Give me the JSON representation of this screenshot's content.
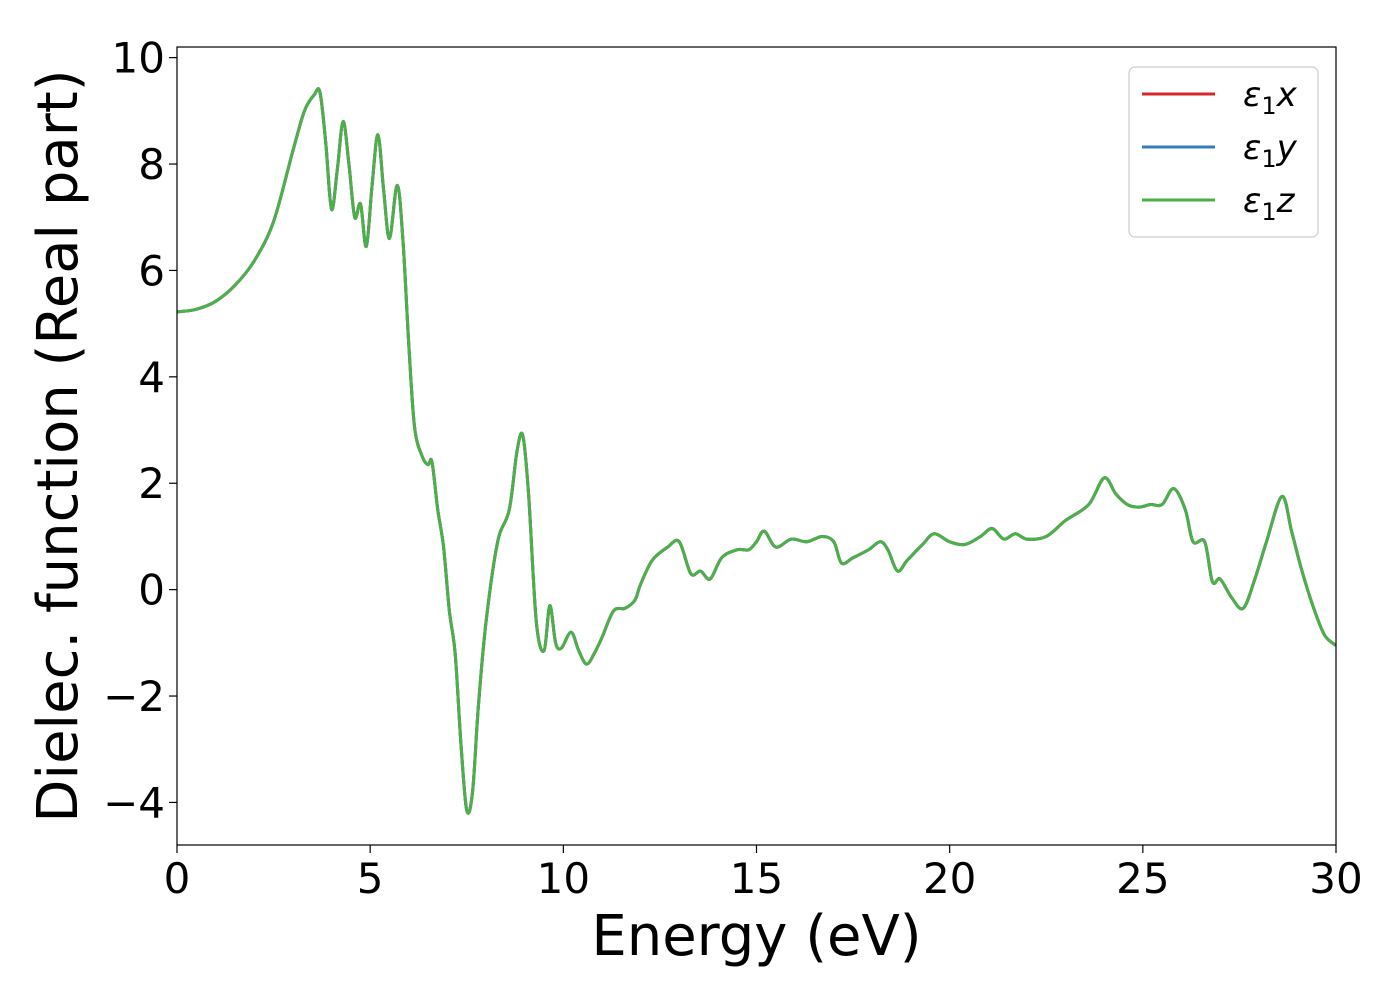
{
  "chart_data": {
    "type": "line",
    "title": "",
    "xlabel": "Energy (eV)",
    "ylabel": "Dielec. function (Real part)",
    "xlim": [
      0,
      30
    ],
    "ylim": [
      -4.8,
      10.2
    ],
    "xticks": [
      0,
      5,
      10,
      15,
      20,
      25,
      30
    ],
    "xtick_labels": [
      "0",
      "5",
      "10",
      "15",
      "20",
      "25",
      "30"
    ],
    "yticks": [
      -4,
      -2,
      0,
      2,
      4,
      6,
      8,
      10
    ],
    "ytick_labels": [
      "−4",
      "−2",
      "0",
      "2",
      "4",
      "6",
      "8",
      "10"
    ],
    "grid": false,
    "legend_position": "top-right",
    "x": [
      0.0,
      0.5,
      1.0,
      1.5,
      2.0,
      2.5,
      3.0,
      3.3,
      3.55,
      3.7,
      3.85,
      4.0,
      4.15,
      4.3,
      4.45,
      4.6,
      4.75,
      4.9,
      5.05,
      5.2,
      5.35,
      5.5,
      5.7,
      5.85,
      6.0,
      6.15,
      6.35,
      6.5,
      6.6,
      6.75,
      6.9,
      7.05,
      7.2,
      7.35,
      7.5,
      7.65,
      7.8,
      8.0,
      8.3,
      8.6,
      8.8,
      8.95,
      9.1,
      9.3,
      9.5,
      9.65,
      9.8,
      9.95,
      10.2,
      10.4,
      10.6,
      10.8,
      11.0,
      11.3,
      11.6,
      11.85,
      12.0,
      12.3,
      12.7,
      13.0,
      13.3,
      13.55,
      13.8,
      14.1,
      14.5,
      14.8,
      15.0,
      15.2,
      15.5,
      15.9,
      16.3,
      16.7,
      17.0,
      17.2,
      17.5,
      17.9,
      18.2,
      18.4,
      18.65,
      18.9,
      19.3,
      19.6,
      20.0,
      20.4,
      20.8,
      21.1,
      21.4,
      21.7,
      22.0,
      22.5,
      23.0,
      23.6,
      24.0,
      24.3,
      24.6,
      24.9,
      25.2,
      25.5,
      25.8,
      26.1,
      26.3,
      26.6,
      26.8,
      27.0,
      27.3,
      27.6,
      27.9,
      28.2,
      28.6,
      28.85,
      29.1,
      29.4,
      29.7,
      30.0
    ],
    "series": [
      {
        "name": "ε₁x",
        "color": "#d62728",
        "values": [
          5.22,
          5.27,
          5.42,
          5.72,
          6.18,
          6.92,
          8.25,
          9.0,
          9.3,
          9.35,
          8.4,
          7.15,
          7.9,
          8.8,
          8.0,
          7.0,
          7.25,
          6.45,
          7.6,
          8.55,
          7.5,
          6.6,
          7.6,
          6.55,
          4.6,
          3.05,
          2.5,
          2.35,
          2.4,
          1.5,
          0.8,
          -0.4,
          -1.2,
          -2.9,
          -4.15,
          -3.8,
          -2.2,
          -0.6,
          0.9,
          1.5,
          2.6,
          2.9,
          1.8,
          -0.6,
          -1.15,
          -0.3,
          -1.0,
          -1.1,
          -0.8,
          -1.15,
          -1.4,
          -1.2,
          -0.9,
          -0.4,
          -0.35,
          -0.2,
          0.1,
          0.55,
          0.8,
          0.9,
          0.3,
          0.35,
          0.2,
          0.6,
          0.75,
          0.75,
          0.9,
          1.1,
          0.8,
          0.95,
          0.9,
          1.0,
          0.9,
          0.5,
          0.6,
          0.75,
          0.9,
          0.75,
          0.35,
          0.55,
          0.85,
          1.05,
          0.9,
          0.85,
          1.0,
          1.15,
          0.95,
          1.05,
          0.95,
          1.0,
          1.3,
          1.6,
          2.1,
          1.8,
          1.6,
          1.55,
          1.6,
          1.6,
          1.9,
          1.5,
          0.9,
          0.9,
          0.15,
          0.2,
          -0.15,
          -0.35,
          0.2,
          0.9,
          1.75,
          1.1,
          0.4,
          -0.3,
          -0.85,
          -1.05
        ]
      },
      {
        "name": "ε₁y",
        "color": "#377eb8",
        "values": [
          5.22,
          5.27,
          5.42,
          5.72,
          6.18,
          6.92,
          8.25,
          9.0,
          9.3,
          9.35,
          8.4,
          7.15,
          7.9,
          8.8,
          8.0,
          7.0,
          7.25,
          6.45,
          7.6,
          8.55,
          7.5,
          6.6,
          7.6,
          6.55,
          4.6,
          3.05,
          2.5,
          2.35,
          2.4,
          1.5,
          0.8,
          -0.4,
          -1.2,
          -2.9,
          -4.15,
          -3.8,
          -2.2,
          -0.6,
          0.9,
          1.5,
          2.6,
          2.9,
          1.8,
          -0.6,
          -1.15,
          -0.3,
          -1.0,
          -1.1,
          -0.8,
          -1.15,
          -1.4,
          -1.2,
          -0.9,
          -0.4,
          -0.35,
          -0.2,
          0.1,
          0.55,
          0.8,
          0.9,
          0.3,
          0.35,
          0.2,
          0.6,
          0.75,
          0.75,
          0.9,
          1.1,
          0.8,
          0.95,
          0.9,
          1.0,
          0.9,
          0.5,
          0.6,
          0.75,
          0.9,
          0.75,
          0.35,
          0.55,
          0.85,
          1.05,
          0.9,
          0.85,
          1.0,
          1.15,
          0.95,
          1.05,
          0.95,
          1.0,
          1.3,
          1.6,
          2.1,
          1.8,
          1.6,
          1.55,
          1.6,
          1.6,
          1.9,
          1.5,
          0.9,
          0.9,
          0.15,
          0.2,
          -0.15,
          -0.35,
          0.2,
          0.9,
          1.75,
          1.1,
          0.4,
          -0.3,
          -0.85,
          -1.05
        ]
      },
      {
        "name": "ε₁z",
        "color": "#4daf4a",
        "values": [
          5.22,
          5.27,
          5.42,
          5.72,
          6.18,
          6.92,
          8.25,
          9.0,
          9.3,
          9.35,
          8.4,
          7.15,
          7.9,
          8.8,
          8.0,
          7.0,
          7.25,
          6.45,
          7.6,
          8.55,
          7.5,
          6.6,
          7.6,
          6.55,
          4.6,
          3.05,
          2.5,
          2.35,
          2.4,
          1.5,
          0.8,
          -0.4,
          -1.2,
          -2.9,
          -4.15,
          -3.8,
          -2.2,
          -0.6,
          0.9,
          1.5,
          2.6,
          2.9,
          1.8,
          -0.6,
          -1.15,
          -0.3,
          -1.0,
          -1.1,
          -0.8,
          -1.15,
          -1.4,
          -1.2,
          -0.9,
          -0.4,
          -0.35,
          -0.2,
          0.1,
          0.55,
          0.8,
          0.9,
          0.3,
          0.35,
          0.2,
          0.6,
          0.75,
          0.75,
          0.9,
          1.1,
          0.8,
          0.95,
          0.9,
          1.0,
          0.9,
          0.5,
          0.6,
          0.75,
          0.9,
          0.75,
          0.35,
          0.55,
          0.85,
          1.05,
          0.9,
          0.85,
          1.0,
          1.15,
          0.95,
          1.05,
          0.95,
          1.0,
          1.3,
          1.6,
          2.1,
          1.8,
          1.6,
          1.55,
          1.6,
          1.6,
          1.9,
          1.5,
          0.9,
          0.9,
          0.15,
          0.2,
          -0.15,
          -0.35,
          0.2,
          0.9,
          1.75,
          1.1,
          0.4,
          -0.3,
          -0.85,
          -1.05
        ]
      }
    ],
    "legend": [
      {
        "symbol": "ε",
        "sub": "1",
        "var": "x"
      },
      {
        "symbol": "ε",
        "sub": "1",
        "var": "y"
      },
      {
        "symbol": "ε",
        "sub": "1",
        "var": "z"
      }
    ]
  }
}
